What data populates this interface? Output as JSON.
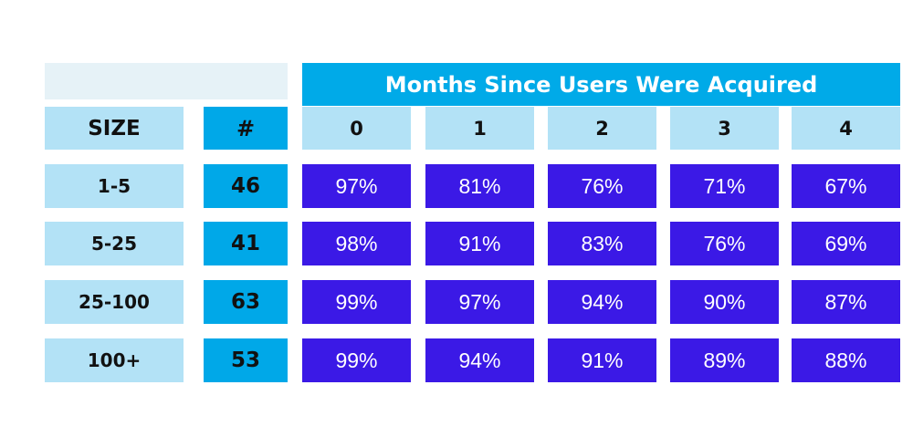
{
  "chart_data": {
    "type": "table",
    "title": "Months Since Users Were Acquired",
    "row_header_label": "SIZE",
    "count_header_label": "#",
    "months": [
      "0",
      "1",
      "2",
      "3",
      "4"
    ],
    "rows": [
      {
        "size": "1-5",
        "count": "46",
        "values": [
          "97%",
          "81%",
          "76%",
          "71%",
          "67%"
        ]
      },
      {
        "size": "5-25",
        "count": "41",
        "values": [
          "98%",
          "91%",
          "83%",
          "76%",
          "69%"
        ]
      },
      {
        "size": "25-100",
        "count": "63",
        "values": [
          "99%",
          "97%",
          "94%",
          "90%",
          "87%"
        ]
      },
      {
        "size": "100+",
        "count": "53",
        "values": [
          "99%",
          "94%",
          "91%",
          "89%",
          "88%"
        ]
      }
    ]
  },
  "colors": {
    "banner": "#00aae8",
    "light_header": "#b3e2f6",
    "count_column": "#00a8e8",
    "percent_cell": "#3b19e6",
    "blank_header": "#e6f2f7"
  }
}
